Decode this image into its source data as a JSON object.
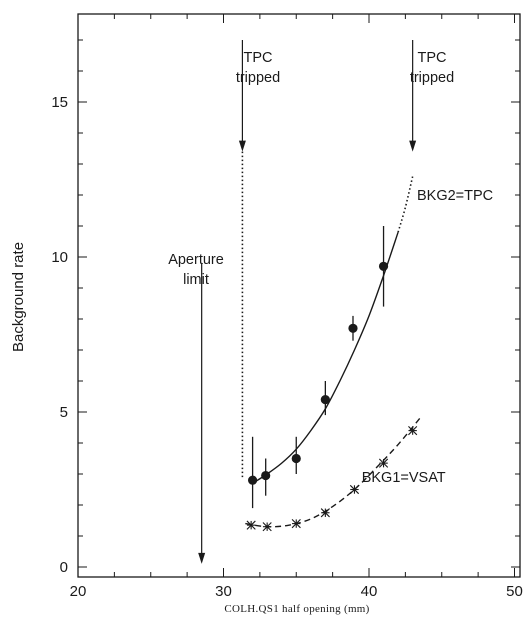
{
  "chart_data": {
    "type": "scatter",
    "xlabel": "COLH.QS1 half opening (mm)",
    "ylabel": "Background rate",
    "xlim": [
      20,
      50
    ],
    "ylim": [
      0,
      18
    ],
    "x_ticks": [
      "20",
      "30",
      "40",
      "50"
    ],
    "y_ticks": [
      "0",
      "5",
      "10",
      "15"
    ],
    "grid": false,
    "series": [
      {
        "name": "BKG2=TPC",
        "marker": "filled-circle",
        "line": "solid",
        "points": [
          {
            "x": 32.0,
            "y": 2.8,
            "err": [
              1.9,
              4.2
            ]
          },
          {
            "x": 32.9,
            "y": 2.95,
            "err": [
              2.3,
              3.5
            ]
          },
          {
            "x": 35.0,
            "y": 3.5,
            "err": [
              3.0,
              4.2
            ]
          },
          {
            "x": 37.0,
            "y": 5.4,
            "err": [
              4.9,
              6.0
            ]
          },
          {
            "x": 38.9,
            "y": 7.7,
            "err": [
              7.3,
              8.1
            ]
          },
          {
            "x": 41.0,
            "y": 9.7,
            "err": [
              8.4,
              11.0
            ]
          }
        ],
        "fit": [
          {
            "x": 32.0,
            "y": 2.7
          },
          {
            "x": 33.0,
            "y": 3.0
          },
          {
            "x": 34.0,
            "y": 3.35
          },
          {
            "x": 35.0,
            "y": 3.8
          },
          {
            "x": 36.0,
            "y": 4.4
          },
          {
            "x": 37.0,
            "y": 5.1
          },
          {
            "x": 38.0,
            "y": 6.0
          },
          {
            "x": 39.0,
            "y": 7.0
          },
          {
            "x": 40.0,
            "y": 8.1
          },
          {
            "x": 41.0,
            "y": 9.4
          },
          {
            "x": 42.0,
            "y": 10.8
          }
        ],
        "fit_dotted_extension": [
          {
            "x": 42.0,
            "y": 10.8
          },
          {
            "x": 42.5,
            "y": 11.6
          },
          {
            "x": 43.0,
            "y": 12.6
          }
        ]
      },
      {
        "name": "BKG1=VSAT",
        "marker": "asterisk",
        "line": "dashed",
        "points": [
          {
            "x": 31.9,
            "y": 1.35
          },
          {
            "x": 33.0,
            "y": 1.3
          },
          {
            "x": 35.0,
            "y": 1.4
          },
          {
            "x": 37.0,
            "y": 1.75
          },
          {
            "x": 39.0,
            "y": 2.5
          },
          {
            "x": 41.0,
            "y": 3.35
          },
          {
            "x": 43.0,
            "y": 4.4
          }
        ],
        "fit": [
          {
            "x": 31.5,
            "y": 1.4
          },
          {
            "x": 33.0,
            "y": 1.3
          },
          {
            "x": 34.5,
            "y": 1.35
          },
          {
            "x": 36.0,
            "y": 1.55
          },
          {
            "x": 37.5,
            "y": 1.95
          },
          {
            "x": 39.0,
            "y": 2.5
          },
          {
            "x": 40.5,
            "y": 3.2
          },
          {
            "x": 42.0,
            "y": 3.95
          },
          {
            "x": 43.5,
            "y": 4.8
          }
        ]
      }
    ],
    "annotations": [
      {
        "id": "tpc-left",
        "lines": [
          "TPC",
          "tripped"
        ],
        "arrow_x": 31.3,
        "arrow_from_y": 17.0,
        "arrow_to_y": 13.4
      },
      {
        "id": "tpc-right",
        "lines": [
          "TPC",
          "tripped"
        ],
        "arrow_x": 43.0,
        "arrow_from_y": 17.0,
        "arrow_to_y": 13.4
      },
      {
        "id": "aperture",
        "lines": [
          "Aperture",
          "limit"
        ],
        "arrow_x": 28.5,
        "arrow_from_y": 9.8,
        "arrow_to_y": 0.1
      }
    ],
    "vertical_dotted_line": {
      "x": 31.3,
      "y_from": 2.9,
      "y_to": 13.4
    },
    "series_labels": [
      {
        "text": "BKG2=TPC",
        "x": 43.3,
        "y": 12.0
      },
      {
        "text": "BKG1=VSAT",
        "x": 39.5,
        "y": 2.9
      }
    ]
  }
}
